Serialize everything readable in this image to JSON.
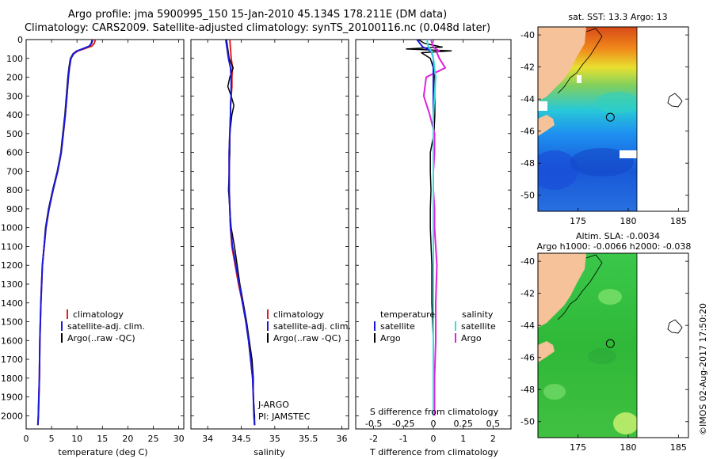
{
  "header": {
    "title_line1": "Argo profile: jma 5900995_150 15-Jan-2010 45.134S 178.211E (DM data)",
    "title_line2": "Climatology: CARS2009. Satellite-adjusted climatology: synTS_20100116.nc (0.048d later)"
  },
  "colors": {
    "climatology": "#e02020",
    "satellite": "#1a1adc",
    "argo": "#000000",
    "sal_satellite": "#33dddd",
    "sal_argo": "#dd22dd",
    "land": "#f5c29a"
  },
  "chart_data": [
    {
      "type": "line",
      "name": "temperature-profile",
      "xlabel": "temperature (deg C)",
      "ylabel": "",
      "xlim": [
        0,
        31
      ],
      "ylim": [
        2070,
        0
      ],
      "xticks": [
        "0",
        "5",
        "10",
        "15",
        "20",
        "25",
        "30"
      ],
      "yticks": [
        "0",
        "100",
        "200",
        "300",
        "400",
        "500",
        "600",
        "700",
        "800",
        "900",
        "1000",
        "1100",
        "1200",
        "1300",
        "1400",
        "1500",
        "1600",
        "1700",
        "1800",
        "1900",
        "2000"
      ],
      "depth": [
        0,
        20,
        35,
        50,
        60,
        75,
        100,
        150,
        200,
        300,
        400,
        500,
        600,
        700,
        800,
        900,
        1000,
        1200,
        1400,
        1600,
        1800,
        2000,
        2050
      ],
      "series": [
        {
          "name": "climatology",
          "values": [
            13.6,
            13.4,
            12.9,
            11.3,
            10.2,
            9.4,
            8.8,
            8.5,
            8.3,
            8.0,
            7.7,
            7.3,
            6.9,
            6.2,
            5.3,
            4.5,
            3.9,
            3.2,
            2.9,
            2.7,
            2.6,
            2.4,
            2.3
          ]
        },
        {
          "name": "satellite-adj. clim.",
          "values": [
            13.0,
            12.8,
            12.4,
            11.0,
            10.0,
            9.3,
            8.8,
            8.5,
            8.3,
            8.0,
            7.7,
            7.3,
            6.9,
            6.2,
            5.3,
            4.5,
            3.9,
            3.2,
            2.9,
            2.7,
            2.6,
            2.4,
            2.3
          ]
        },
        {
          "name": "Argo(..raw -QC)",
          "values": [
            13.1,
            12.9,
            12.5,
            11.1,
            9.9,
            9.2,
            8.7,
            8.4,
            8.2,
            7.9,
            7.6,
            7.2,
            6.8,
            6.1,
            5.2,
            4.4,
            3.8,
            3.2,
            2.9,
            2.7,
            2.6,
            2.4,
            2.3
          ]
        }
      ],
      "legend": [
        "climatology",
        "satellite-adj. clim.",
        "Argo(..raw -QC)"
      ],
      "legend_position": "lower-center"
    },
    {
      "type": "line",
      "name": "salinity-profile",
      "xlabel": "salinity",
      "xlim": [
        33.75,
        36.1
      ],
      "ylim": [
        2070,
        0
      ],
      "xticks": [
        "34",
        "34.5",
        "35",
        "35.5",
        "36"
      ],
      "depth": [
        0,
        50,
        100,
        150,
        200,
        250,
        300,
        350,
        400,
        500,
        600,
        700,
        800,
        900,
        1000,
        1100,
        1200,
        1300,
        1400,
        1500,
        1600,
        1700,
        1800,
        1900,
        2000,
        2050
      ],
      "series": [
        {
          "name": "climatology",
          "values": [
            34.33,
            34.34,
            34.35,
            34.37,
            34.36,
            34.36,
            34.35,
            34.34,
            34.34,
            34.33,
            34.32,
            34.32,
            34.32,
            34.33,
            34.34,
            34.36,
            34.41,
            34.46,
            34.52,
            34.57,
            34.61,
            34.64,
            34.67,
            34.68,
            34.69,
            34.7
          ]
        },
        {
          "name": "satellite-adj. clim.",
          "values": [
            34.27,
            34.29,
            34.31,
            34.34,
            34.35,
            34.35,
            34.35,
            34.34,
            34.34,
            34.33,
            34.32,
            34.32,
            34.32,
            34.33,
            34.34,
            34.37,
            34.42,
            34.47,
            34.52,
            34.57,
            34.61,
            34.64,
            34.67,
            34.68,
            34.69,
            34.7
          ]
        },
        {
          "name": "Argo(..raw -QC)",
          "values": [
            34.28,
            34.3,
            34.32,
            34.38,
            34.33,
            34.3,
            34.35,
            34.39,
            34.36,
            34.33,
            34.33,
            34.32,
            34.31,
            34.33,
            34.35,
            34.4,
            34.44,
            34.48,
            34.53,
            34.58,
            34.62,
            34.66,
            34.68,
            34.68,
            34.7,
            34.7
          ]
        }
      ],
      "legend": [
        "climatology",
        "satellite-adj. clim.",
        "Argo(..raw -QC)"
      ],
      "legend_position": "lower-center",
      "annotations": [
        "J-ARGO",
        "PI: JAMSTEC"
      ]
    },
    {
      "type": "line",
      "name": "difference-profile",
      "xlabel": "T difference from climatology",
      "xlabel_top": "S difference from climatology",
      "xlim": [
        -2.6,
        2.6
      ],
      "ylim": [
        2070,
        0
      ],
      "xticks": [
        "-2",
        "-1",
        "0",
        "1",
        "2"
      ],
      "s_xticks": [
        "-0.5",
        "-0.25",
        "0",
        "0.25",
        "0.5"
      ],
      "depth": [
        0,
        20,
        40,
        50,
        60,
        70,
        100,
        150,
        200,
        300,
        400,
        500,
        600,
        700,
        800,
        900,
        1000,
        1200,
        1400,
        1600,
        1800,
        2000
      ],
      "series": [
        {
          "name": "temperature satellite",
          "values": [
            -0.55,
            -0.45,
            -0.35,
            -0.2,
            -0.1,
            -0.05,
            0.0,
            0.0,
            0.0,
            0.0,
            0.0,
            0.0,
            0.0,
            0.0,
            0.0,
            0.0,
            0.0,
            0.0,
            0.0,
            0.0,
            0.0,
            0.0
          ]
        },
        {
          "name": "temperature Argo",
          "values": [
            -0.5,
            -0.3,
            0.3,
            -0.9,
            0.6,
            -0.4,
            -0.1,
            0.0,
            0.05,
            0.05,
            0.05,
            0.02,
            -0.1,
            -0.1,
            -0.08,
            -0.1,
            -0.1,
            -0.05,
            -0.05,
            0.0,
            0.0,
            0.0
          ]
        },
        {
          "name": "salinity satellite",
          "values": [
            -0.05,
            -0.05,
            -0.04,
            -0.03,
            -0.02,
            -0.01,
            0.0,
            0.01,
            0.02,
            0.01,
            0.0,
            0.0,
            0.0,
            0.0,
            0.0,
            0.0,
            0.0,
            0.0,
            0.0,
            0.0,
            0.0,
            0.0
          ]
        },
        {
          "name": "salinity Argo",
          "values": [
            -0.02,
            -0.01,
            0.0,
            0.02,
            0.05,
            0.03,
            0.05,
            0.1,
            -0.06,
            -0.08,
            -0.03,
            0.01,
            0.01,
            0.0,
            0.0,
            0.01,
            0.01,
            0.03,
            0.02,
            0.02,
            0.01,
            0.01
          ]
        }
      ],
      "legend": {
        "temperature_title": "temperature",
        "salinity_title": "salinity",
        "satellite": "satellite",
        "argo": "Argo"
      },
      "legend_position": "lower-center"
    },
    {
      "type": "heatmap",
      "name": "sst-map",
      "title": "sat. SST: 13.3 Argo: 13",
      "xlim": [
        171,
        186
      ],
      "ylim": [
        -51,
        -39.5
      ],
      "xticks": [
        "175",
        "180",
        "185"
      ],
      "yticks": [
        "-40",
        "-42",
        "-44",
        "-46",
        "-48",
        "-50"
      ],
      "data_east_limit": 180,
      "argo_position": {
        "lon": 178.211,
        "lat": -45.134
      }
    },
    {
      "type": "heatmap",
      "name": "sla-map",
      "title": "Altim. SLA: -0.0034",
      "subtitle": "Argo h1000: -0.0066 h2000: -0.038",
      "xlim": [
        171,
        186
      ],
      "ylim": [
        -51,
        -39.5
      ],
      "xticks": [
        "175",
        "180",
        "185"
      ],
      "yticks": [
        "-40",
        "-42",
        "-44",
        "-46",
        "-48",
        "-50"
      ],
      "data_east_limit": 180,
      "argo_position": {
        "lon": 178.211,
        "lat": -45.134
      }
    }
  ],
  "footer": {
    "stamp": "©IMOS 02-Aug-2017 17:50:20"
  }
}
